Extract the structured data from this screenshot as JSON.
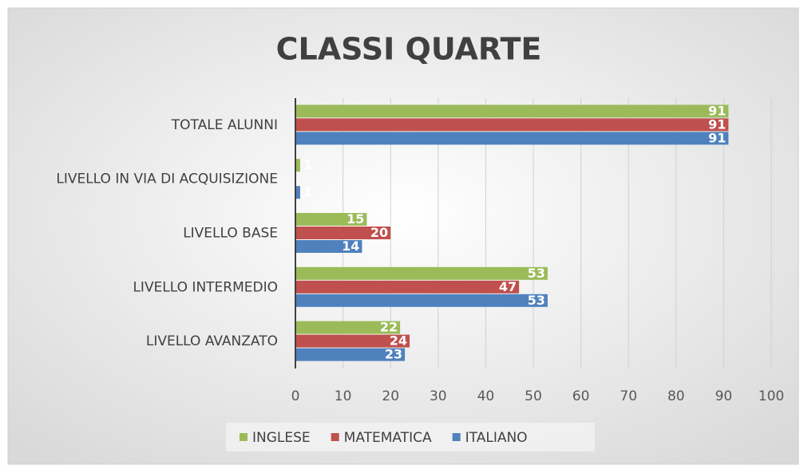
{
  "chart_data": {
    "type": "bar",
    "orientation": "horizontal",
    "title": "CLASSI QUARTE",
    "categories": [
      "TOTALE ALUNNI",
      "LIVELLO IN VIA DI ACQUISIZIONE",
      "LIVELLO BASE",
      "LIVELLO INTERMEDIO",
      "LIVELLO AVANZATO"
    ],
    "series": [
      {
        "name": "INGLESE",
        "color": "#9bbb59",
        "values": [
          91,
          1,
          15,
          53,
          22
        ]
      },
      {
        "name": "MATEMATICA",
        "color": "#c0504d",
        "values": [
          91,
          null,
          20,
          47,
          24
        ]
      },
      {
        "name": "ITALIANO",
        "color": "#4f81bd",
        "values": [
          91,
          1,
          14,
          53,
          23
        ]
      }
    ],
    "xlim": [
      0,
      100
    ],
    "xticks": [
      0,
      10,
      20,
      30,
      40,
      50,
      60,
      70,
      80,
      90,
      100
    ],
    "grid": true,
    "legend": "bottom"
  }
}
